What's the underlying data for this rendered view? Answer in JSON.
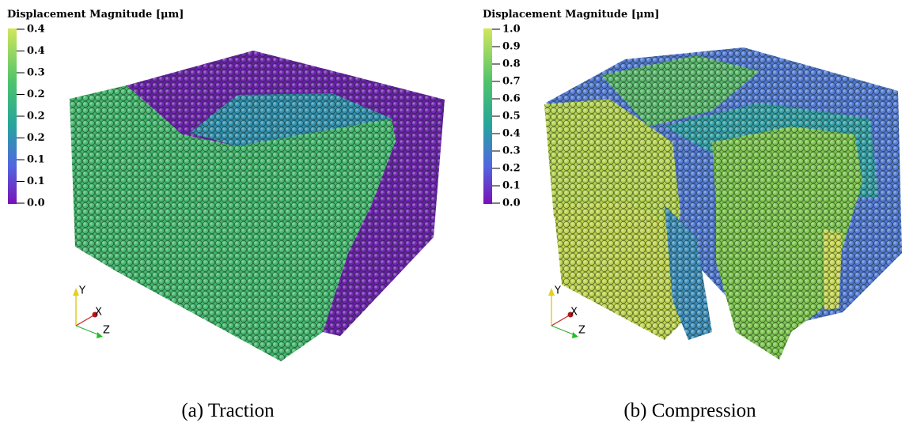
{
  "panels": [
    {
      "colorbar_title": "Displacement Magnitude [μm]",
      "ticks": [
        "0.4",
        "0.4",
        "0.3",
        "0.2",
        "0.2",
        "0.2",
        "0.1",
        "0.1",
        "0.0"
      ],
      "axes": {
        "y": "Y",
        "x": "X",
        "z": "Z"
      },
      "caption": "(a) Traction"
    },
    {
      "colorbar_title": "Displacement Magnitude [μm]",
      "ticks": [
        "1.0",
        "0.9",
        "0.8",
        "0.7",
        "0.6",
        "0.5",
        "0.4",
        "0.3",
        "0.2",
        "0.1",
        "0.0"
      ],
      "axes": {
        "y": "Y",
        "x": "X",
        "z": "Z"
      },
      "caption": "(b) Compression"
    }
  ]
}
